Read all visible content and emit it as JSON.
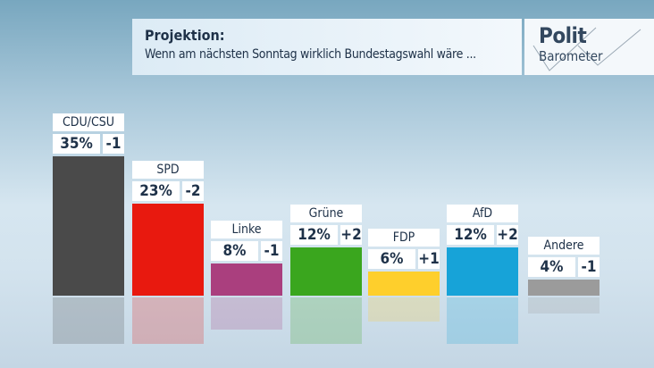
{
  "header": {
    "title": "Projektion:",
    "subtitle": "Wenn am nächsten Sonntag wirklich Bundestagswahl wäre ..."
  },
  "logo": {
    "line1": "Polit",
    "line2": "Barometer"
  },
  "chart_data": {
    "type": "bar",
    "title": "Projektion: Wenn am nächsten Sonntag wirklich Bundestagswahl wäre ...",
    "categories": [
      "CDU/CSU",
      "SPD",
      "Linke",
      "Grüne",
      "FDP",
      "AfD",
      "Andere"
    ],
    "values": [
      35,
      23,
      8,
      12,
      6,
      12,
      4
    ],
    "value_labels": [
      "35%",
      "23%",
      "8%",
      "12%",
      "6%",
      "12%",
      "4%"
    ],
    "changes": [
      "-1",
      "-2",
      "-1",
      "+2",
      "+1",
      "+2",
      "-1"
    ],
    "colors": [
      "#4a4a4a",
      "#e8190f",
      "#aa3f7e",
      "#3aa61e",
      "#fecf2c",
      "#17a3d8",
      "#9b9b9b"
    ],
    "unit": "%",
    "ylim": [
      0,
      40
    ],
    "grid": false
  }
}
